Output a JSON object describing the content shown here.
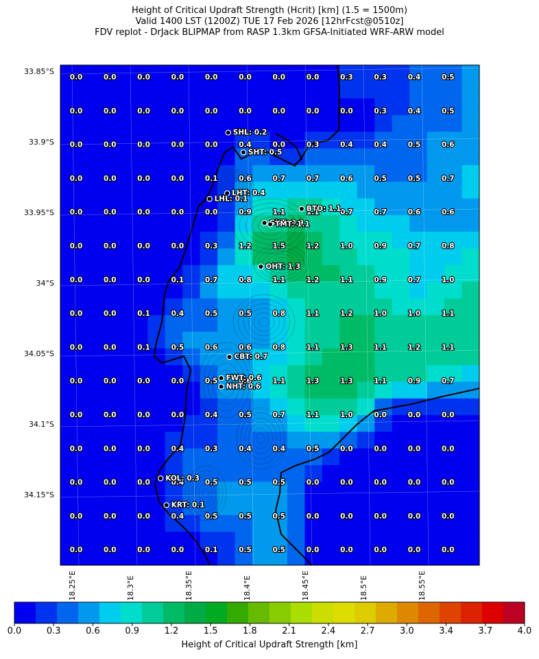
{
  "title_lines": [
    "Height of Critical Updraft Strength (Hcrit) [km] (1.5 = 1500m)",
    "Valid 1400 LST (1200Z) TUE 17 Feb 2026 [12hrFcst@0510z]",
    "FDV replot - DrJack BLIPMAP from RASP 1.3km GFSA-Initiated WRF-ARW model"
  ],
  "lat_labels": [
    "33.85°S",
    "33.9°S",
    "33.95°S",
    "34°S",
    "34.05°S",
    "34.1°S",
    "34.15°S"
  ],
  "lon_labels": [
    "18.25°E",
    "18.3°E",
    "18.35°E",
    "18.4°E",
    "18.45°E",
    "18.5°E",
    "18.55°E"
  ],
  "grid_values": [
    [
      "0.0",
      "0.0",
      "0.0",
      "0.0",
      "0.0",
      "0.0",
      "0.0",
      "0.0",
      "0.3",
      "0.3",
      "0.4",
      "0.5"
    ],
    [
      "0.0",
      "0.0",
      "0.0",
      "0.0",
      "0.0",
      "0.0",
      "0.0",
      "0.0",
      "0.0",
      "0.3",
      "0.4",
      "0.5"
    ],
    [
      "0.0",
      "0.0",
      "0.0",
      "0.0",
      "0.0",
      "0.4",
      "0.0",
      "0.3",
      "0.4",
      "0.4",
      "0.5",
      "0.6"
    ],
    [
      "0.0",
      "0.0",
      "0.0",
      "0.0",
      "0.1",
      "0.6",
      "0.7",
      "0.7",
      "0.6",
      "0.5",
      "0.5",
      "0.7"
    ],
    [
      "0.0",
      "0.0",
      "0.0",
      "0.0",
      "0.0",
      "0.9",
      "1.1",
      "1.1",
      "0.7",
      "0.7",
      "0.6",
      "0.6"
    ],
    [
      "0.0",
      "0.0",
      "0.0",
      "0.0",
      "0.3",
      "1.2",
      "1.5",
      "1.2",
      "1.0",
      "0.9",
      "0.7",
      "0.8"
    ],
    [
      "0.0",
      "0.0",
      "0.0",
      "0.1",
      "0.7",
      "0.8",
      "1.1",
      "1.2",
      "1.1",
      "0.9",
      "0.7",
      "1.0"
    ],
    [
      "0.0",
      "0.0",
      "0.1",
      "0.4",
      "0.5",
      "0.5",
      "0.8",
      "1.1",
      "1.2",
      "1.0",
      "1.0",
      "1.1"
    ],
    [
      "0.0",
      "0.0",
      "0.1",
      "0.5",
      "0.6",
      "0.6",
      "0.8",
      "1.1",
      "1.3",
      "1.1",
      "1.2",
      "1.1"
    ],
    [
      "0.0",
      "0.0",
      "0.0",
      "0.0",
      "0.5",
      "0.6",
      "1.1",
      "1.3",
      "1.3",
      "1.1",
      "0.9",
      "0.7"
    ],
    [
      "0.0",
      "0.0",
      "0.0",
      "0.0",
      "0.4",
      "0.5",
      "0.7",
      "1.1",
      "1.0",
      "0.0",
      "0.0",
      "0.0"
    ],
    [
      "0.0",
      "0.0",
      "0.0",
      "0.4",
      "0.3",
      "0.4",
      "0.4",
      "0.5",
      "0.0",
      "0.0",
      "0.0",
      "0.0"
    ],
    [
      "0.0",
      "0.0",
      "0.0",
      "0.4",
      "0.5",
      "0.5",
      "0.5",
      "0.0",
      "0.0",
      "0.0",
      "0.0",
      "0.0"
    ],
    [
      "0.0",
      "0.0",
      "0.0",
      "0.4",
      "0.5",
      "0.5",
      "0.5",
      "0.0",
      "0.0",
      "0.0",
      "0.0",
      "0.0"
    ],
    [
      "0.0",
      "0.0",
      "0.0",
      "0.0",
      "0.1",
      "0.5",
      "0.5",
      "0.0",
      "0.0",
      "0.0",
      "0.0",
      "0.0"
    ]
  ],
  "sites": [
    {
      "label": "SHL: 0.2",
      "lat": -33.893,
      "lon": 18.384
    },
    {
      "label": "SHT: 0.5",
      "lat": -33.907,
      "lon": 18.397
    },
    {
      "label": "LHT: 0.4",
      "lat": -33.936,
      "lon": 18.383
    },
    {
      "label": "LHL: 0.1",
      "lat": -33.94,
      "lon": 18.368
    },
    {
      "label": "BTO: 1.1",
      "lat": -33.947,
      "lon": 18.447
    },
    {
      "label": "GUT: 0.9",
      "lat": -33.957,
      "lon": 18.415
    },
    {
      "label": "TMT: 1.1",
      "lat": -33.958,
      "lon": 18.42
    },
    {
      "label": "OHT: 1.3",
      "lat": -33.988,
      "lon": 18.412
    },
    {
      "label": "CBT: 0.7",
      "lat": -34.052,
      "lon": 18.385
    },
    {
      "label": "FWT: 0.6",
      "lat": -34.067,
      "lon": 18.378
    },
    {
      "label": "NHT: 0.6",
      "lat": -34.073,
      "lon": 18.378
    },
    {
      "label": "KOL: 0.3",
      "lat": -34.138,
      "lon": 18.326
    },
    {
      "label": "KRT: 0.1",
      "lat": -34.157,
      "lon": 18.331
    }
  ],
  "colorbar": {
    "title": "Height of Critical Updraft Strength [km]",
    "ticks": [
      "0.0",
      "0.3",
      "0.6",
      "0.9",
      "1.2",
      "1.5",
      "1.8",
      "2.1",
      "2.4",
      "2.7",
      "3.0",
      "3.4",
      "3.7",
      "4.0"
    ],
    "colors": [
      "#0000ee",
      "#0033ee",
      "#0066ee",
      "#0099ee",
      "#00ccee",
      "#00ddcc",
      "#00cc99",
      "#00bb66",
      "#00aa44",
      "#00aa22",
      "#33aa00",
      "#66bb00",
      "#88cc00",
      "#aadd00",
      "#ccdd00",
      "#dddd00",
      "#ddcc00",
      "#ddaa00",
      "#dd8800",
      "#dd6600",
      "#dd4400",
      "#dd2200",
      "#dd0000",
      "#bb0022"
    ],
    "min": 0.0,
    "max": 4.0
  }
}
